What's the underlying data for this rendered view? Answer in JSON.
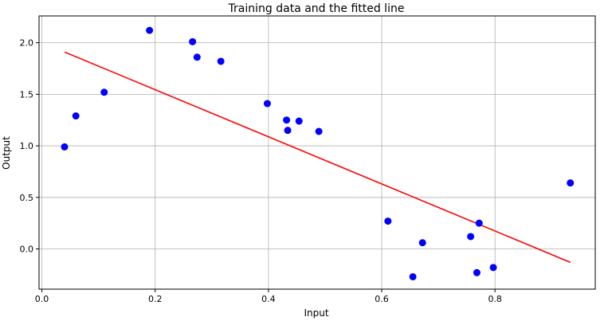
{
  "chart_data": {
    "type": "scatter",
    "title": "Training data and the fitted line",
    "xlabel": "Input",
    "ylabel": "Output",
    "xlim": [
      -0.005,
      0.977
    ],
    "ylim": [
      -0.39,
      2.26
    ],
    "grid": true,
    "xticks": [
      {
        "value": 0.0,
        "label": "0.0"
      },
      {
        "value": 0.2,
        "label": "0.2"
      },
      {
        "value": 0.4,
        "label": "0.4"
      },
      {
        "value": 0.6,
        "label": "0.6"
      },
      {
        "value": 0.8,
        "label": "0.8"
      }
    ],
    "yticks": [
      {
        "value": 0.0,
        "label": "0.0"
      },
      {
        "value": 0.5,
        "label": "0.5"
      },
      {
        "value": 1.0,
        "label": "1.0"
      },
      {
        "value": 1.5,
        "label": "1.5"
      },
      {
        "value": 2.0,
        "label": "2.0"
      }
    ],
    "series": [
      {
        "kind": "scatter",
        "color": "#0000ff",
        "points": [
          {
            "x": 0.04,
            "y": 0.99
          },
          {
            "x": 0.06,
            "y": 1.29
          },
          {
            "x": 0.11,
            "y": 1.52
          },
          {
            "x": 0.19,
            "y": 2.12
          },
          {
            "x": 0.266,
            "y": 2.01
          },
          {
            "x": 0.274,
            "y": 1.86
          },
          {
            "x": 0.316,
            "y": 1.82
          },
          {
            "x": 0.398,
            "y": 1.41
          },
          {
            "x": 0.432,
            "y": 1.25
          },
          {
            "x": 0.434,
            "y": 1.15
          },
          {
            "x": 0.454,
            "y": 1.24
          },
          {
            "x": 0.489,
            "y": 1.14
          },
          {
            "x": 0.611,
            "y": 0.27
          },
          {
            "x": 0.655,
            "y": -0.27
          },
          {
            "x": 0.672,
            "y": 0.06
          },
          {
            "x": 0.757,
            "y": 0.12
          },
          {
            "x": 0.768,
            "y": -0.23
          },
          {
            "x": 0.772,
            "y": 0.25
          },
          {
            "x": 0.797,
            "y": -0.18
          },
          {
            "x": 0.933,
            "y": 0.64
          }
        ]
      },
      {
        "kind": "line",
        "color": "#ff0000",
        "points": [
          {
            "x": 0.04,
            "y": 1.91
          },
          {
            "x": 0.933,
            "y": -0.13
          }
        ]
      }
    ]
  }
}
